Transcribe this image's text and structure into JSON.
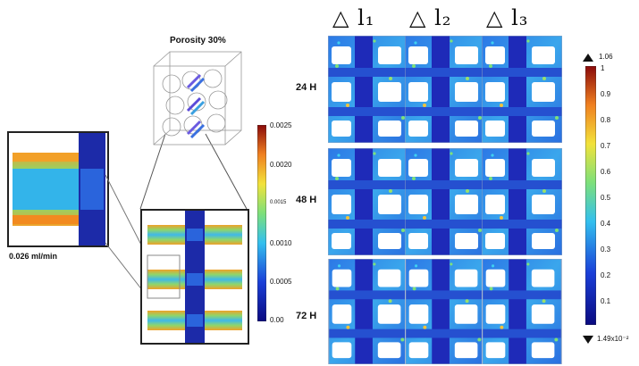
{
  "porosity_label": "Porosity 30%",
  "flow_label": "0.026 ml/min",
  "columns": [
    "△ l₁",
    "△ l₂",
    "△ l₃"
  ],
  "rows": [
    "24 H",
    "48 H",
    "72 H"
  ],
  "velocity_scale": {
    "ticks": [
      "0.0025",
      "0.0020",
      "0.0015",
      "0.0010",
      "0.0005",
      "0.00"
    ]
  },
  "strain_scale": {
    "max_label": "1.06",
    "min_label": "1.49x10⁻²",
    "ticks": [
      "1",
      "0.9",
      "0.8",
      "0.7",
      "0.6",
      "0.5",
      "0.4",
      "0.3",
      "0.2",
      "0.1"
    ]
  },
  "colors": {
    "dark_blue": "#1a1aa8",
    "mid_blue": "#2f6fe0",
    "cyan": "#3fb4e8",
    "green": "#6fd07a",
    "orange": "#f29a26",
    "red": "#c02020"
  }
}
